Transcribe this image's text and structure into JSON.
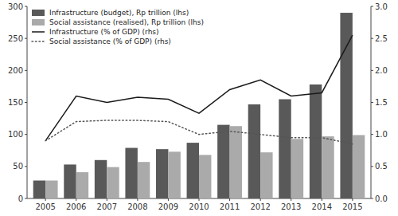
{
  "chart_data": {
    "type": "bar",
    "categories": [
      "2005",
      "2006",
      "2007",
      "2008",
      "2009",
      "2010",
      "2011",
      "2012",
      "2013",
      "2014",
      "2015"
    ],
    "series": [
      {
        "name": "Infrastructure (budget), Rp trillion (lhs)",
        "type": "bar",
        "color": "#595959",
        "values": [
          28,
          53,
          60,
          79,
          77,
          87,
          115,
          147,
          155,
          178,
          290
        ]
      },
      {
        "name": "Social assistance (realised), Rp trillion (lhs)",
        "type": "bar",
        "color": "#aaaaaa",
        "values": [
          28,
          41,
          49,
          57,
          73,
          68,
          113,
          72,
          93,
          97,
          99
        ]
      },
      {
        "name": "Infrastructure (% of GDP) (rhs)",
        "type": "line",
        "axis": "y2",
        "color": "#1a1a1a",
        "line_style": "solid",
        "values": [
          0.9,
          1.6,
          1.5,
          1.58,
          1.55,
          1.33,
          1.7,
          1.85,
          1.6,
          1.65,
          2.55
        ]
      },
      {
        "name": "Social assistance (% of GDP) (rhs)",
        "type": "line",
        "axis": "y2",
        "color": "#555555",
        "line_style": "dotted",
        "values": [
          0.9,
          1.2,
          1.22,
          1.22,
          1.2,
          1.0,
          1.05,
          1.0,
          0.95,
          0.95,
          0.85
        ]
      }
    ],
    "ylim": [
      0,
      300
    ],
    "yticks": [
      0,
      50,
      100,
      150,
      200,
      250,
      300
    ],
    "y2lim": [
      0.0,
      3.0
    ],
    "y2ticks": [
      {
        "value": 0.0,
        "label": "0.0"
      },
      0.5,
      {
        "value": 1.0,
        "label": "1.0"
      },
      1.5,
      {
        "value": 2.0,
        "label": "2.0"
      },
      2.5,
      {
        "value": 3.0,
        "label": "3.0"
      }
    ],
    "grid": false,
    "legend": "upper left"
  }
}
